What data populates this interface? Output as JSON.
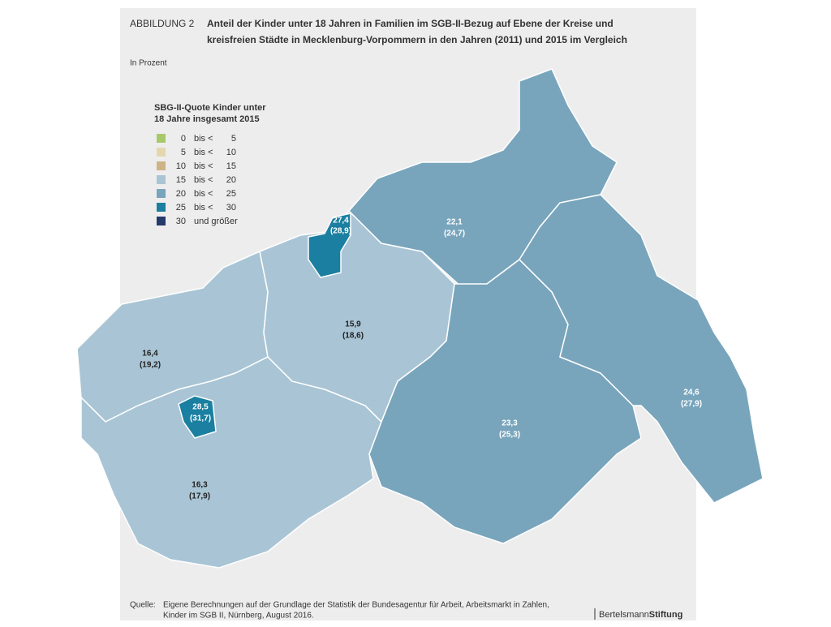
{
  "header": {
    "label": "ABBILDUNG 2",
    "title_line1": "Anteil der Kinder unter 18 Jahren in Familien im SGB-II-Bezug auf Ebene der Kreise und",
    "title_line2": "kreisfreien Städte in Mecklenburg-Vorpommern in den Jahren (2011) und 2015 im Vergleich",
    "unit": "In Prozent"
  },
  "legend": {
    "title_line1": "SBG-II-Quote Kinder unter",
    "title_line2": "18 Jahre insgesamt 2015",
    "items": [
      {
        "from": "0",
        "sep": "bis <",
        "to": "5",
        "color": "#a8c96a"
      },
      {
        "from": "5",
        "sep": "bis <",
        "to": "10",
        "color": "#e6d6b0"
      },
      {
        "from": "10",
        "sep": "bis <",
        "to": "15",
        "color": "#cdb487"
      },
      {
        "from": "15",
        "sep": "bis <",
        "to": "20",
        "color": "#a9c5d5"
      },
      {
        "from": "20",
        "sep": "bis <",
        "to": "25",
        "color": "#78a5bc"
      },
      {
        "from": "25",
        "sep": "bis <",
        "to": "30",
        "color": "#1a7fa0"
      },
      {
        "from": "30",
        "sep": "und größer",
        "to": "",
        "color": "#233a6b"
      }
    ]
  },
  "regions": [
    {
      "value": "16,4",
      "previous": "(19,2)"
    },
    {
      "value": "16,3",
      "previous": "(17,9)"
    },
    {
      "value": "15,9",
      "previous": "(18,6)"
    },
    {
      "value": "22,1",
      "previous": "(24,7)"
    },
    {
      "value": "23,3",
      "previous": "(25,3)"
    },
    {
      "value": "24,6",
      "previous": "(27,9)"
    },
    {
      "value": "27,4",
      "previous": "(28,9)"
    },
    {
      "value": "28,5",
      "previous": "(31,7)"
    }
  ],
  "footer": {
    "source_label": "Quelle:",
    "source_line1": "Eigene Berechnungen auf der Grundlage der Statistik der Bundesagentur für Arbeit, Arbeitsmarkt in Zahlen,",
    "source_line2": "Kinder im SGB II, Nürnberg, August 2016.",
    "brand1": "Bertelsmann",
    "brand2": "Stiftung"
  }
}
